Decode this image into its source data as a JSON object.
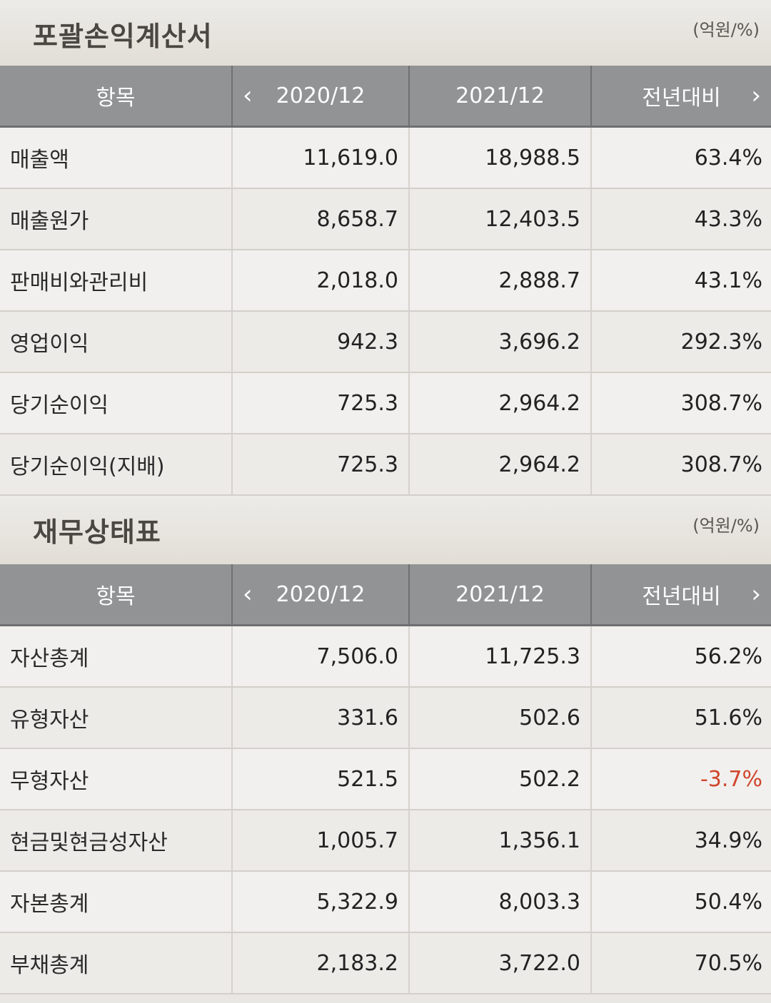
{
  "income": {
    "title": "포괄손익계산서",
    "unit": "(억원/%)",
    "headers": {
      "item": "항목",
      "y1": "2020/12",
      "y2": "2021/12",
      "yoy": "전년대비"
    },
    "rows": [
      {
        "label": "매출액",
        "y1": "11,619.0",
        "y2": "18,988.5",
        "yoy": "63.4%"
      },
      {
        "label": "매출원가",
        "y1": "8,658.7",
        "y2": "12,403.5",
        "yoy": "43.3%"
      },
      {
        "label": "판매비와관리비",
        "y1": "2,018.0",
        "y2": "2,888.7",
        "yoy": "43.1%"
      },
      {
        "label": "영업이익",
        "y1": "942.3",
        "y2": "3,696.2",
        "yoy": "292.3%"
      },
      {
        "label": "당기순이익",
        "y1": "725.3",
        "y2": "2,964.2",
        "yoy": "308.7%"
      },
      {
        "label": "당기순이익(지배)",
        "y1": "725.3",
        "y2": "2,964.2",
        "yoy": "308.7%"
      }
    ]
  },
  "balance": {
    "title": "재무상태표",
    "unit": "(억원/%)",
    "headers": {
      "item": "항목",
      "y1": "2020/12",
      "y2": "2021/12",
      "yoy": "전년대비"
    },
    "rows": [
      {
        "label": "자산총계",
        "y1": "7,506.0",
        "y2": "11,725.3",
        "yoy": "56.2%"
      },
      {
        "label": "유형자산",
        "y1": "331.6",
        "y2": "502.6",
        "yoy": "51.6%"
      },
      {
        "label": "무형자산",
        "y1": "521.5",
        "y2": "502.2",
        "yoy": "-3.7%"
      },
      {
        "label": "현금및현금성자산",
        "y1": "1,005.7",
        "y2": "1,356.1",
        "yoy": "34.9%"
      },
      {
        "label": "자본총계",
        "y1": "5,322.9",
        "y2": "8,003.3",
        "yoy": "50.4%"
      },
      {
        "label": "부채총계",
        "y1": "2,183.2",
        "y2": "3,722.0",
        "yoy": "70.5%"
      }
    ]
  },
  "colors": {
    "header_bg": "#929395",
    "negative": "#d0452b"
  },
  "icons": {
    "prev": "chevron-left-icon",
    "next": "chevron-right-icon"
  }
}
